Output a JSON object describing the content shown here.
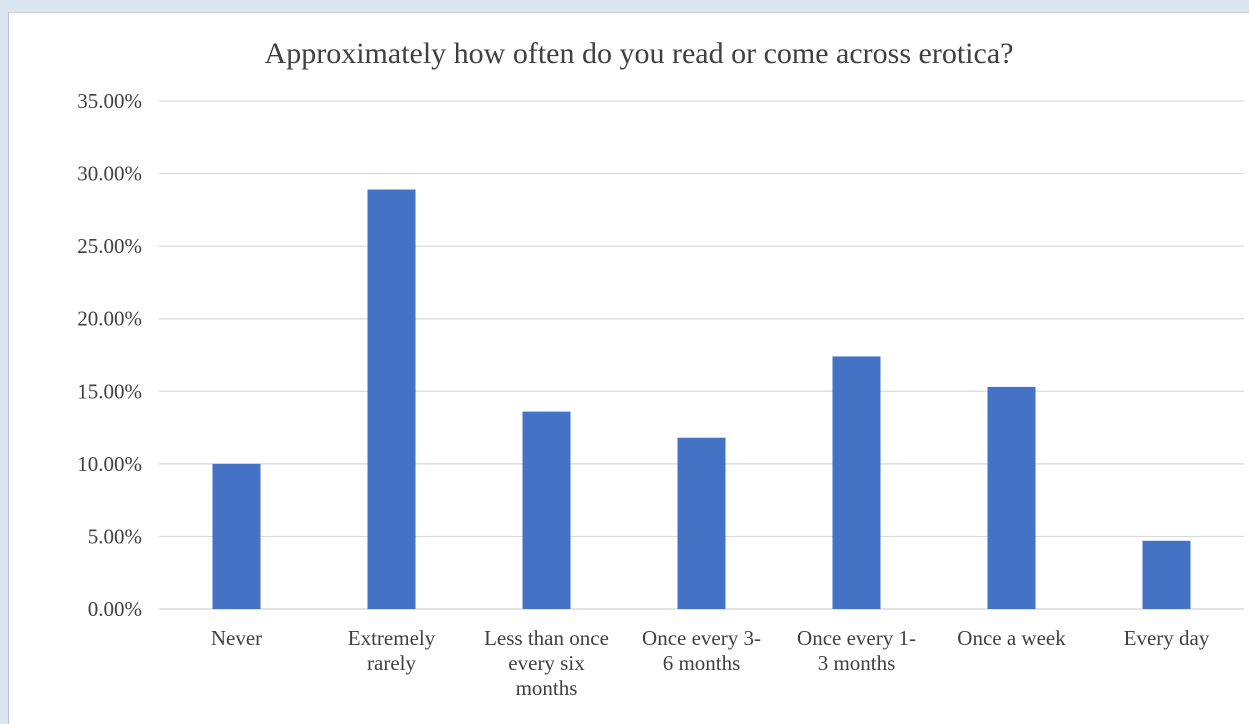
{
  "chart_data": {
    "type": "bar",
    "title": "Approximately how often do you read or come across erotica?",
    "xlabel": "",
    "ylabel": "",
    "categories": [
      "Never",
      "Extremely rarely",
      "Less than once every six months",
      "Once every 3-6 months",
      "Once every 1-3 months",
      "Once a week",
      "Every day"
    ],
    "category_label_lines": [
      [
        "Never"
      ],
      [
        "Extremely",
        "rarely"
      ],
      [
        "Less than once",
        "every six",
        "months"
      ],
      [
        "Once every 3-",
        "6 months"
      ],
      [
        "Once every 1-",
        "3 months"
      ],
      [
        "Once a week"
      ],
      [
        "Every day"
      ]
    ],
    "values": [
      10.0,
      28.9,
      13.6,
      11.8,
      17.4,
      15.3,
      4.7
    ],
    "ylim": [
      0,
      35
    ],
    "yticks": [
      0,
      5,
      10,
      15,
      20,
      25,
      30,
      35
    ],
    "ytick_labels": [
      "0.00%",
      "5.00%",
      "10.00%",
      "15.00%",
      "20.00%",
      "25.00%",
      "30.00%",
      "35.00%"
    ],
    "grid": true,
    "legend": "none",
    "bar_color": "#4472c4",
    "grid_color": "#d9d9d9"
  }
}
